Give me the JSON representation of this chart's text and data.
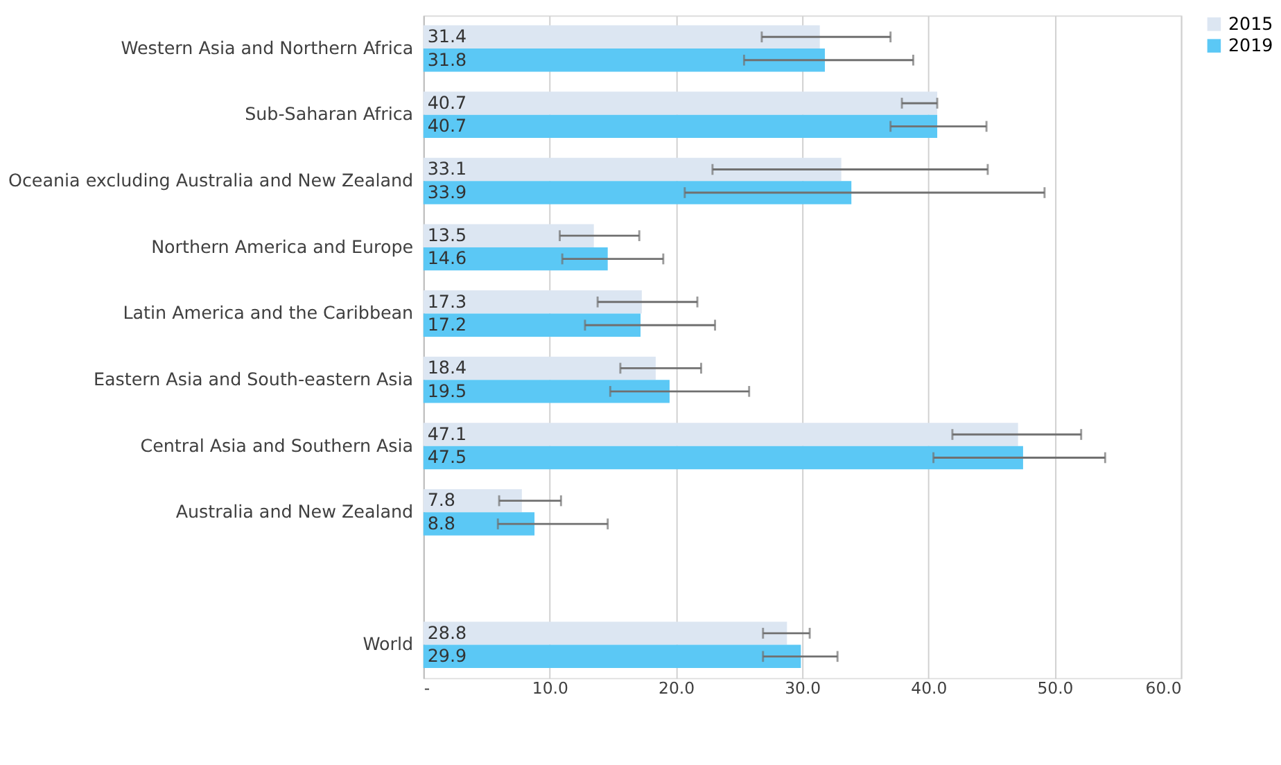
{
  "chart_data": {
    "type": "bar",
    "orientation": "horizontal",
    "categories": [
      "Western Asia and Northern Africa",
      "Sub-Saharan Africa",
      "Oceania excluding Australia and New Zealand",
      "Northern America and Europe",
      "Latin America and the Caribbean",
      "Eastern Asia and South-eastern Asia",
      "Central Asia and Southern Asia",
      "Australia and New Zealand",
      null,
      "World"
    ],
    "series": [
      {
        "name": "2015",
        "color": "#dce6f2",
        "values": [
          31.4,
          40.7,
          33.1,
          13.5,
          17.3,
          18.4,
          47.1,
          7.8,
          null,
          28.8
        ],
        "errors": [
          [
            26.8,
            37.0
          ],
          [
            37.9,
            40.7
          ],
          [
            22.9,
            44.7
          ],
          [
            10.8,
            17.1
          ],
          [
            13.8,
            21.7
          ],
          [
            15.6,
            22.0
          ],
          [
            41.9,
            52.1
          ],
          [
            6.0,
            10.9
          ],
          null,
          [
            26.9,
            30.6
          ]
        ]
      },
      {
        "name": "2019",
        "color": "#5bc8f5",
        "values": [
          31.8,
          40.7,
          33.9,
          14.6,
          17.2,
          19.5,
          47.5,
          8.8,
          null,
          29.9
        ],
        "errors": [
          [
            25.4,
            38.8
          ],
          [
            37.0,
            44.6
          ],
          [
            20.7,
            49.2
          ],
          [
            11.0,
            19.0
          ],
          [
            12.8,
            23.1
          ],
          [
            14.8,
            25.8
          ],
          [
            40.4,
            54.0
          ],
          [
            5.9,
            14.6
          ],
          null,
          [
            26.9,
            32.8
          ]
        ]
      }
    ],
    "xlim": [
      0,
      60
    ],
    "xticks": [
      {
        "value": 0,
        "label": "-"
      },
      {
        "value": 10,
        "label": "10.0"
      },
      {
        "value": 20,
        "label": "20.0"
      },
      {
        "value": 30,
        "label": "30.0"
      },
      {
        "value": 40,
        "label": "40.0"
      },
      {
        "value": 50,
        "label": "50.0"
      },
      {
        "value": 60,
        "label": "60.0"
      }
    ],
    "grid": "x",
    "legend": "right",
    "data_labels": true
  }
}
